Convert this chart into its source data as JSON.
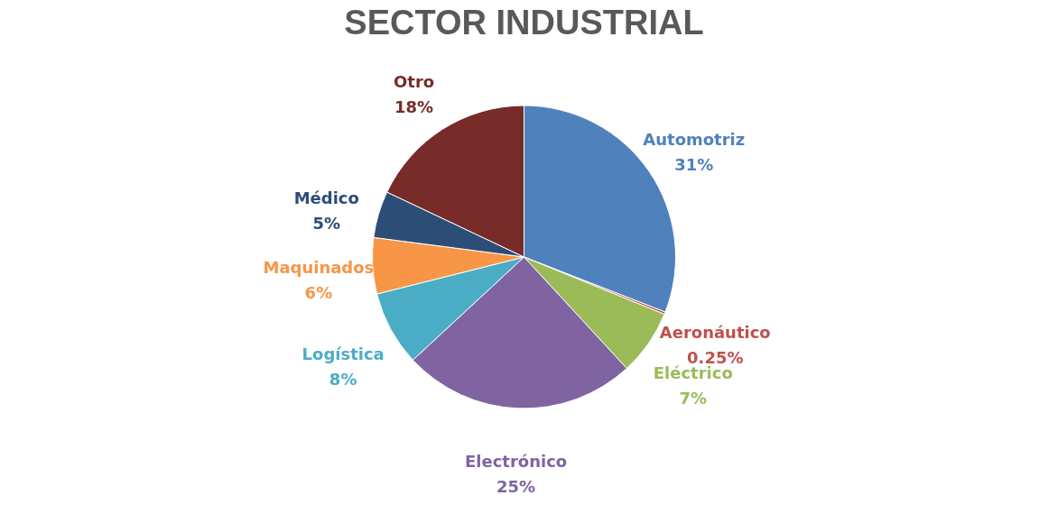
{
  "chart_data": {
    "type": "pie",
    "title": "SECTOR INDUSTRIAL",
    "categories": [
      "Automotriz",
      "Aeronáutico",
      "Eléctrico",
      "Electrónico",
      "Logística",
      "Maquinados",
      "Médico",
      "Otro"
    ],
    "values": [
      31,
      0.25,
      7,
      25,
      8,
      6,
      5,
      18
    ],
    "value_labels": [
      "31%",
      "0.25%",
      "7%",
      "25%",
      "8%",
      "6%",
      "5%",
      "18%"
    ],
    "colors": [
      "#4f81bd",
      "#c0504d",
      "#9bbb59",
      "#8064a2",
      "#4bacc6",
      "#f79646",
      "#2c4d75",
      "#772c2a"
    ],
    "legend": false
  }
}
